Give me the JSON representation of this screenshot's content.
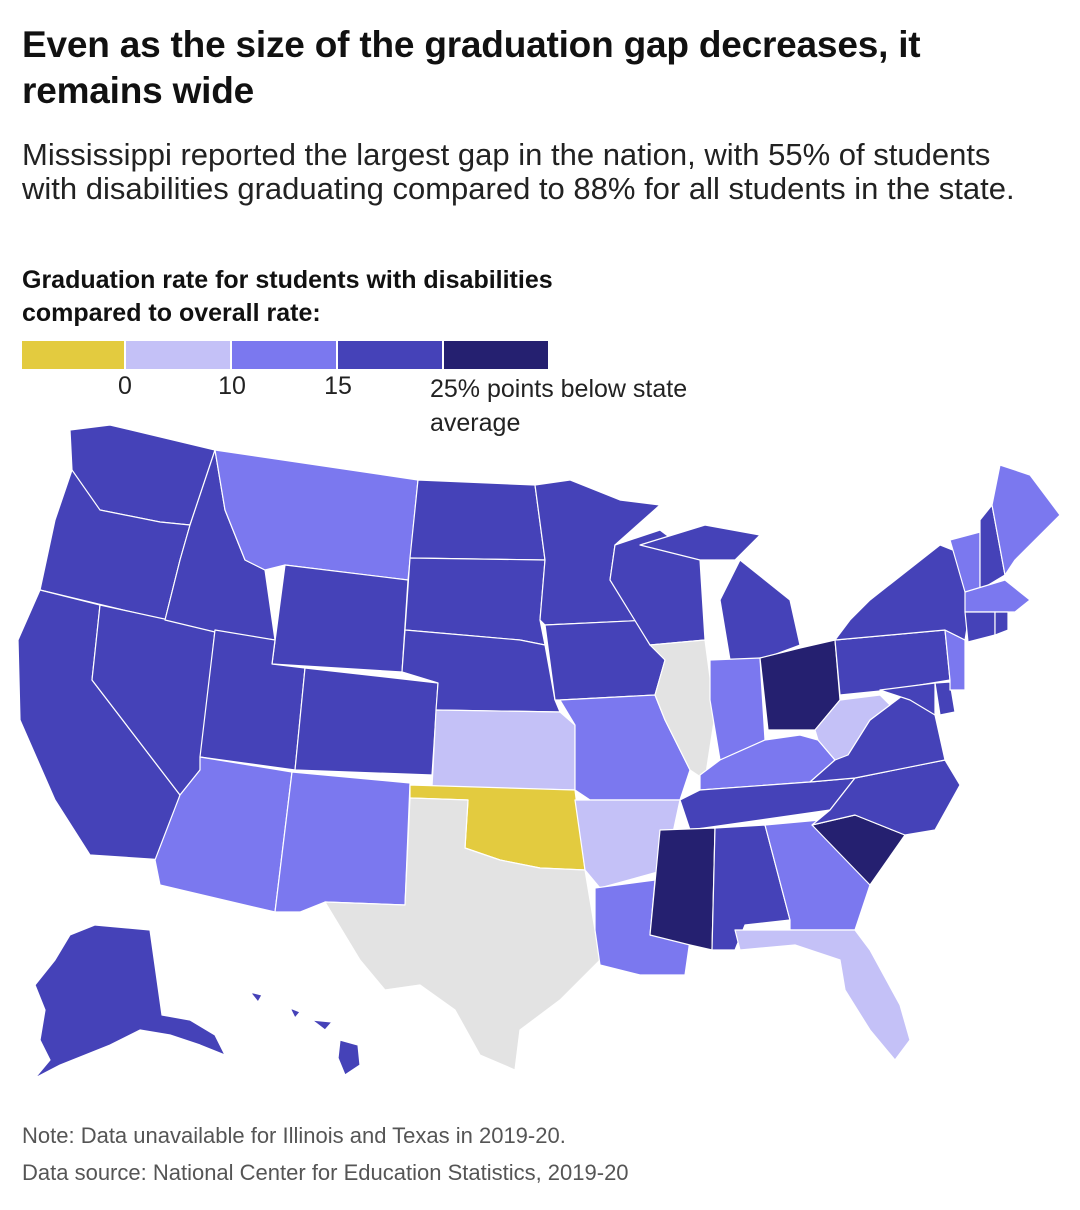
{
  "title": "Even as the size of the graduation gap decreases, it remains wide",
  "subtitle": "Mississippi reported the largest gap in the nation, with 55% of students with disabilities graduating compared to 88% for all students in the state.",
  "legend": {
    "title": "Graduation rate for students with disabilities compared to overall rate:",
    "bins": [
      {
        "color": "#e3cb3f",
        "label": ""
      },
      {
        "color": "#c4c1f7",
        "label": "0"
      },
      {
        "color": "#7b78ef",
        "label": "10"
      },
      {
        "color": "#4542b8",
        "label": "15"
      },
      {
        "color": "#252070",
        "label": "25% points below state average"
      }
    ],
    "tick_labels": [
      "0",
      "10",
      "15"
    ],
    "end_label": "25% points below state average"
  },
  "no_data_color": "#e3e3e3",
  "footer": {
    "note": "Note: Data unavailable for Illinois and Texas in 2019-20.",
    "source": "Data source: National Center for Education Statistics, 2019-20"
  },
  "chart_data": {
    "type": "choropleth",
    "value_meaning": "percentage points below state average graduation rate",
    "bins": [
      "below 0",
      "0-10",
      "10-15",
      "15-25",
      "25+"
    ],
    "states": {
      "Washington": "15-25",
      "Oregon": "15-25",
      "California": "15-25",
      "Nevada": "15-25",
      "Idaho": "15-25",
      "Montana": "10-15",
      "Wyoming": "15-25",
      "Utah": "15-25",
      "Colorado": "15-25",
      "Arizona": "10-15",
      "New Mexico": "10-15",
      "North Dakota": "15-25",
      "South Dakota": "15-25",
      "Nebraska": "15-25",
      "Kansas": "0-10",
      "Oklahoma": "below 0",
      "Texas": "no data",
      "Minnesota": "15-25",
      "Iowa": "15-25",
      "Missouri": "10-15",
      "Arkansas": "0-10",
      "Louisiana": "10-15",
      "Wisconsin": "15-25",
      "Illinois": "no data",
      "Michigan": "15-25",
      "Indiana": "10-15",
      "Ohio": "25+",
      "Kentucky": "10-15",
      "Tennessee": "15-25",
      "Mississippi": "25+",
      "Alabama": "15-25",
      "Georgia": "10-15",
      "Florida": "0-10",
      "South Carolina": "25+",
      "North Carolina": "15-25",
      "Virginia": "15-25",
      "West Virginia": "0-10",
      "Pennsylvania": "15-25",
      "New York": "15-25",
      "Vermont": "10-15",
      "New Hampshire": "15-25",
      "Maine": "10-15",
      "Massachusetts": "10-15",
      "Rhode Island": "15-25",
      "Connecticut": "15-25",
      "New Jersey": "10-15",
      "Delaware": "15-25",
      "Maryland": "15-25",
      "Alaska": "15-25",
      "Hawaii": "15-25"
    }
  }
}
